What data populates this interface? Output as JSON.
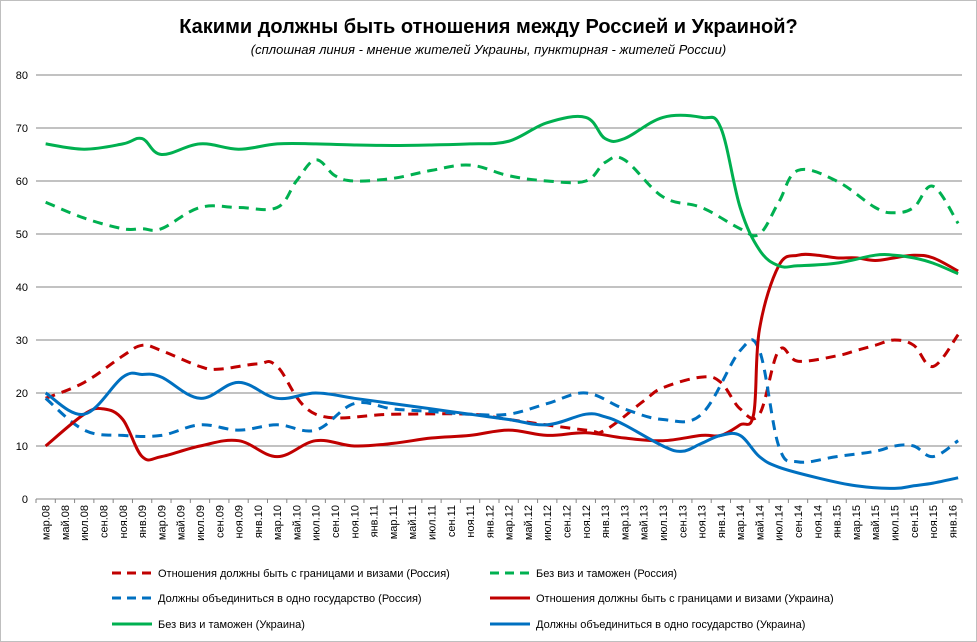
{
  "title": "Какими должны быть отношения между Россией и Украиной?",
  "subtitle": "(сплошная линия - мнение жителей Украины, пунктирная  - жителей России)",
  "chart_data": {
    "type": "line",
    "title": "Какими должны быть отношения между Россией и Украиной?",
    "subtitle": "(сплошная линия - мнение жителей Украины, пунктирная  - жителей России)",
    "ylim": [
      0,
      80
    ],
    "yticks": [
      0,
      10,
      20,
      30,
      40,
      50,
      60,
      70,
      80
    ],
    "grid": true,
    "legend_position": "bottom",
    "categories": [
      "мар.08",
      "май.08",
      "июл.08",
      "сен.08",
      "ноя.08",
      "янв.09",
      "мар.09",
      "май.09",
      "июл.09",
      "сен.09",
      "ноя.09",
      "янв.10",
      "мар.10",
      "май.10",
      "июл.10",
      "сен.10",
      "ноя.10",
      "янв.11",
      "мар.11",
      "май.11",
      "июл.11",
      "сен.11",
      "ноя.11",
      "янв.12",
      "мар.12",
      "май.12",
      "июл.12",
      "сен.12",
      "ноя.12",
      "янв.13",
      "мар.13",
      "май.13",
      "июл.13",
      "сен.13",
      "ноя.13",
      "янв.14",
      "мар.14",
      "май.14",
      "июл.14",
      "сен.14",
      "ноя.14",
      "янв.15",
      "мар.15",
      "май.15",
      "июл.15",
      "сен.15",
      "ноя.15",
      "янв.16"
    ],
    "series": [
      {
        "name": "Отношения должны быть с границами и визами (Россия)",
        "color": "#c00000",
        "style": "dashed",
        "x": [
          0,
          2,
          4,
          5,
          6,
          8,
          9,
          11,
          12,
          14,
          18,
          22,
          24,
          28,
          29,
          31,
          32,
          34,
          35,
          36,
          37,
          38,
          39,
          41,
          42,
          43,
          44,
          45,
          46,
          47.3
        ],
        "values": [
          19,
          22,
          27,
          29,
          28,
          25,
          24.5,
          25.5,
          25,
          16,
          16,
          16,
          15,
          13,
          13,
          18.5,
          21,
          23,
          22,
          17,
          16,
          28,
          26,
          27,
          28,
          29,
          30,
          29,
          25,
          31
        ]
      },
      {
        "name": "Без виз и таможен (Россия)",
        "color": "#00b050",
        "style": "dashed",
        "x": [
          0,
          2,
          4,
          5,
          6,
          8,
          10,
          12,
          13,
          14,
          15,
          16,
          18,
          20,
          22,
          24,
          26,
          28,
          29,
          30,
          32,
          34,
          36,
          37,
          38,
          39,
          41,
          43,
          44,
          45,
          46,
          47.3
        ],
        "values": [
          56,
          53,
          51,
          51,
          51,
          55,
          55,
          55,
          60,
          64,
          61,
          60,
          60.5,
          62,
          63,
          61,
          60,
          60,
          63.5,
          64,
          57,
          55,
          51,
          50,
          56,
          62,
          60,
          55,
          54,
          55,
          59,
          52
        ]
      },
      {
        "name": "Должны объединиться в одно государство (Россия)",
        "color": "#0070c0",
        "style": "dashed",
        "x": [
          0,
          2,
          4,
          6,
          8,
          10,
          12,
          14,
          16,
          18,
          20,
          22,
          24,
          26,
          28,
          30,
          32,
          34,
          36,
          37,
          38,
          39,
          41,
          43,
          44,
          45,
          46,
          47.3
        ],
        "values": [
          19,
          13,
          12,
          12,
          14,
          13,
          14,
          13,
          18,
          17,
          16.5,
          16,
          16,
          18,
          20,
          17,
          15,
          16,
          28,
          28,
          10,
          7,
          8,
          9,
          10,
          10,
          8,
          11
        ]
      },
      {
        "name": "Отношения должны быть с границами и визами (Украина)",
        "color": "#c00000",
        "style": "solid",
        "x": [
          0,
          2,
          3,
          4,
          5,
          6,
          8,
          10,
          12,
          14,
          16,
          18,
          20,
          22,
          24,
          26,
          28,
          30,
          32,
          34,
          35,
          36,
          36.7,
          37,
          38,
          39,
          40,
          41,
          42,
          43,
          44,
          45,
          46,
          47.3
        ],
        "values": [
          10,
          16,
          17,
          15,
          8,
          8,
          10,
          11,
          8,
          11,
          10,
          10.5,
          11.5,
          12,
          13,
          12,
          12.5,
          11.5,
          11,
          12,
          12,
          14,
          16,
          32,
          44,
          46,
          46,
          45.5,
          45.5,
          45,
          45.5,
          46,
          45.5,
          43
        ]
      },
      {
        "name": "Без виз и таможен (Украина)",
        "color": "#00b050",
        "style": "solid",
        "x": [
          0,
          2,
          4,
          5,
          6,
          8,
          10,
          12,
          14,
          16,
          18,
          20,
          22,
          24,
          26,
          28,
          29,
          30,
          32,
          34,
          35,
          36,
          37,
          38,
          39,
          41,
          43,
          44,
          45,
          46,
          47.3
        ],
        "values": [
          67,
          66,
          67,
          68,
          65,
          67,
          66,
          67,
          67,
          66.8,
          66.7,
          66.8,
          67,
          67.5,
          71,
          72,
          68,
          68,
          72,
          72,
          70,
          55,
          47,
          44,
          44,
          44.5,
          46,
          46,
          45.5,
          44.5,
          42.5
        ]
      },
      {
        "name": "Должны объединиться в одно государство (Украина)",
        "color": "#0070c0",
        "style": "solid",
        "x": [
          0,
          2,
          4,
          5,
          6,
          8,
          10,
          12,
          14,
          16,
          18,
          20,
          22,
          24,
          26,
          28,
          29,
          30,
          32,
          33,
          34,
          35,
          36,
          37,
          38,
          40,
          42,
          44,
          45,
          46,
          47.3
        ],
        "values": [
          20,
          16,
          23,
          23.5,
          23,
          19,
          22,
          19,
          20,
          19,
          18,
          17,
          16,
          15,
          14,
          16,
          15.5,
          14,
          10,
          9,
          10.5,
          12,
          12,
          8,
          6,
          4,
          2.5,
          2,
          2.5,
          3,
          4
        ]
      }
    ]
  }
}
